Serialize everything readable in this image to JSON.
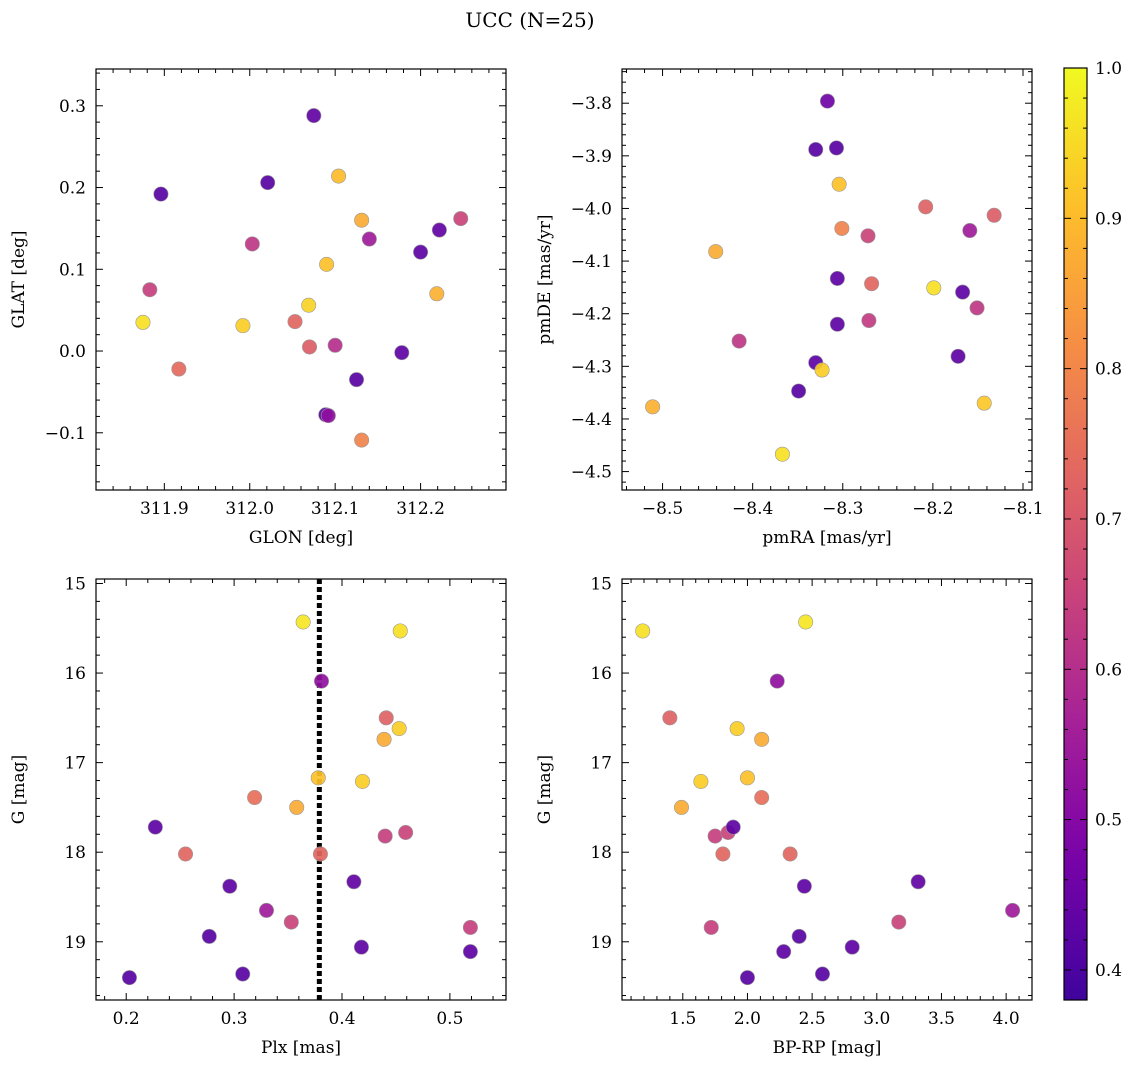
{
  "figure": {
    "title": "UCC (N=25)"
  },
  "colorbar": {
    "colormap": "plasma",
    "range": [
      0.38,
      1.0
    ],
    "ticks": [
      0.4,
      0.5,
      0.6,
      0.7,
      0.8,
      0.9,
      1.0
    ],
    "tick_labels": [
      "0.4",
      "0.5",
      "0.6",
      "0.7",
      "0.8",
      "0.9",
      "1.0"
    ]
  },
  "chart_data": [
    {
      "type": "scatter",
      "xlabel": "GLON [deg]",
      "ylabel": "GLAT [deg]",
      "xlim": [
        311.82,
        312.3
      ],
      "ylim": [
        -0.17,
        0.345
      ],
      "xticks": [
        311.9,
        312.0,
        312.1,
        312.2
      ],
      "xtick_labels": [
        "311.9",
        "312.0",
        "312.1",
        "312.2"
      ],
      "yticks": [
        -0.1,
        0.0,
        0.1,
        0.2,
        0.3
      ],
      "ytick_labels": [
        "−0.1",
        "0.0",
        "0.1",
        "0.2",
        "0.3"
      ],
      "points": [
        {
          "x": 311.875,
          "y": 0.035,
          "c": 0.96
        },
        {
          "x": 311.883,
          "y": 0.075,
          "c": 0.64
        },
        {
          "x": 311.896,
          "y": 0.192,
          "c": 0.42
        },
        {
          "x": 311.917,
          "y": -0.022,
          "c": 0.74
        },
        {
          "x": 311.992,
          "y": 0.031,
          "c": 0.93
        },
        {
          "x": 312.003,
          "y": 0.131,
          "c": 0.62
        },
        {
          "x": 312.021,
          "y": 0.206,
          "c": 0.42
        },
        {
          "x": 312.053,
          "y": 0.036,
          "c": 0.73
        },
        {
          "x": 312.069,
          "y": 0.056,
          "c": 0.94
        },
        {
          "x": 312.07,
          "y": 0.005,
          "c": 0.71
        },
        {
          "x": 312.075,
          "y": 0.288,
          "c": 0.44
        },
        {
          "x": 312.089,
          "y": -0.078,
          "c": 0.42
        },
        {
          "x": 312.092,
          "y": -0.079,
          "c": 0.52
        },
        {
          "x": 312.09,
          "y": 0.106,
          "c": 0.91
        },
        {
          "x": 312.1,
          "y": 0.007,
          "c": 0.6
        },
        {
          "x": 312.104,
          "y": 0.214,
          "c": 0.9
        },
        {
          "x": 312.125,
          "y": -0.035,
          "c": 0.42
        },
        {
          "x": 312.131,
          "y": 0.16,
          "c": 0.87
        },
        {
          "x": 312.131,
          "y": -0.109,
          "c": 0.79
        },
        {
          "x": 312.14,
          "y": 0.137,
          "c": 0.55
        },
        {
          "x": 312.178,
          "y": -0.002,
          "c": 0.43
        },
        {
          "x": 312.2,
          "y": 0.121,
          "c": 0.43
        },
        {
          "x": 312.219,
          "y": 0.07,
          "c": 0.88
        },
        {
          "x": 312.222,
          "y": 0.148,
          "c": 0.44
        },
        {
          "x": 312.247,
          "y": 0.162,
          "c": 0.65
        }
      ]
    },
    {
      "type": "scatter",
      "xlabel": "pmRA [mas/yr]",
      "ylabel": "pmDE [mas/yr]",
      "xlim": [
        -8.545,
        -8.09
      ],
      "ylim": [
        -4.535,
        -3.735
      ],
      "xticks": [
        -8.5,
        -8.4,
        -8.3,
        -8.2,
        -8.1
      ],
      "xtick_labels": [
        "−8.5",
        "−8.4",
        "−8.3",
        "−8.2",
        "−8.1"
      ],
      "yticks": [
        -4.5,
        -4.4,
        -4.3,
        -4.2,
        -4.1,
        -4.0,
        -3.9,
        -3.8
      ],
      "ytick_labels": [
        "−4.5",
        "−4.4",
        "−4.3",
        "−4.2",
        "−4.1",
        "−4.0",
        "−3.9",
        "−3.8"
      ],
      "points": [
        {
          "x": -8.511,
          "y": -4.377,
          "c": 0.88
        },
        {
          "x": -8.441,
          "y": -4.082,
          "c": 0.87
        },
        {
          "x": -8.415,
          "y": -4.252,
          "c": 0.62
        },
        {
          "x": -8.367,
          "y": -4.467,
          "c": 0.96
        },
        {
          "x": -8.349,
          "y": -4.347,
          "c": 0.42
        },
        {
          "x": -8.33,
          "y": -3.888,
          "c": 0.42
        },
        {
          "x": -8.33,
          "y": -4.293,
          "c": 0.43
        },
        {
          "x": -8.323,
          "y": -4.307,
          "c": 0.93
        },
        {
          "x": -8.317,
          "y": -3.796,
          "c": 0.46
        },
        {
          "x": -8.307,
          "y": -3.885,
          "c": 0.42
        },
        {
          "x": -8.306,
          "y": -4.133,
          "c": 0.43
        },
        {
          "x": -8.306,
          "y": -4.22,
          "c": 0.43
        },
        {
          "x": -8.304,
          "y": -3.954,
          "c": 0.91
        },
        {
          "x": -8.301,
          "y": -4.038,
          "c": 0.79
        },
        {
          "x": -8.272,
          "y": -4.052,
          "c": 0.65
        },
        {
          "x": -8.271,
          "y": -4.213,
          "c": 0.63
        },
        {
          "x": -8.268,
          "y": -4.143,
          "c": 0.73
        },
        {
          "x": -8.208,
          "y": -3.997,
          "c": 0.72
        },
        {
          "x": -8.199,
          "y": -4.151,
          "c": 0.96
        },
        {
          "x": -8.172,
          "y": -4.281,
          "c": 0.43
        },
        {
          "x": -8.167,
          "y": -4.159,
          "c": 0.43
        },
        {
          "x": -8.159,
          "y": -4.042,
          "c": 0.55
        },
        {
          "x": -8.151,
          "y": -4.189,
          "c": 0.62
        },
        {
          "x": -8.143,
          "y": -4.37,
          "c": 0.92
        },
        {
          "x": -8.132,
          "y": -4.013,
          "c": 0.71
        }
      ]
    },
    {
      "type": "scatter",
      "xlabel": "Plx [mas]",
      "ylabel": "G [mag]",
      "xlim": [
        0.172,
        0.552
      ],
      "ylim": [
        19.65,
        14.95
      ],
      "y_inverted": true,
      "xticks": [
        0.2,
        0.3,
        0.4,
        0.5
      ],
      "xtick_labels": [
        "0.2",
        "0.3",
        "0.4",
        "0.5"
      ],
      "yticks": [
        15,
        16,
        17,
        18,
        19
      ],
      "ytick_labels": [
        "15",
        "16",
        "17",
        "18",
        "19"
      ],
      "vline": 0.379,
      "points": [
        {
          "x": 0.203,
          "y": 19.4,
          "c": 0.42
        },
        {
          "x": 0.227,
          "y": 17.72,
          "c": 0.43
        },
        {
          "x": 0.255,
          "y": 18.02,
          "c": 0.73
        },
        {
          "x": 0.277,
          "y": 18.94,
          "c": 0.42
        },
        {
          "x": 0.296,
          "y": 18.38,
          "c": 0.43
        },
        {
          "x": 0.308,
          "y": 19.36,
          "c": 0.42
        },
        {
          "x": 0.319,
          "y": 17.39,
          "c": 0.75
        },
        {
          "x": 0.33,
          "y": 18.65,
          "c": 0.55
        },
        {
          "x": 0.353,
          "y": 18.78,
          "c": 0.65
        },
        {
          "x": 0.358,
          "y": 17.5,
          "c": 0.87
        },
        {
          "x": 0.364,
          "y": 15.43,
          "c": 0.97
        },
        {
          "x": 0.378,
          "y": 17.17,
          "c": 0.91
        },
        {
          "x": 0.38,
          "y": 18.02,
          "c": 0.73
        },
        {
          "x": 0.381,
          "y": 16.09,
          "c": 0.52
        },
        {
          "x": 0.411,
          "y": 18.33,
          "c": 0.44
        },
        {
          "x": 0.418,
          "y": 19.06,
          "c": 0.43
        },
        {
          "x": 0.419,
          "y": 17.21,
          "c": 0.93
        },
        {
          "x": 0.439,
          "y": 16.74,
          "c": 0.87
        },
        {
          "x": 0.44,
          "y": 17.82,
          "c": 0.64
        },
        {
          "x": 0.441,
          "y": 16.5,
          "c": 0.72
        },
        {
          "x": 0.453,
          "y": 16.62,
          "c": 0.93
        },
        {
          "x": 0.454,
          "y": 15.53,
          "c": 0.96
        },
        {
          "x": 0.459,
          "y": 17.78,
          "c": 0.65
        },
        {
          "x": 0.519,
          "y": 18.84,
          "c": 0.64
        },
        {
          "x": 0.519,
          "y": 19.11,
          "c": 0.43
        }
      ]
    },
    {
      "type": "scatter",
      "xlabel": "BP-RP [mag]",
      "ylabel": "G [mag]",
      "xlim": [
        1.03,
        4.2
      ],
      "ylim": [
        19.65,
        14.95
      ],
      "y_inverted": true,
      "xticks": [
        1.5,
        2.0,
        2.5,
        3.0,
        3.5,
        4.0
      ],
      "xtick_labels": [
        "1.5",
        "2.0",
        "2.5",
        "3.0",
        "3.5",
        "4.0"
      ],
      "yticks": [
        15,
        16,
        17,
        18,
        19
      ],
      "ytick_labels": [
        "15",
        "16",
        "17",
        "18",
        "19"
      ],
      "points": [
        {
          "x": 1.19,
          "y": 15.53,
          "c": 0.96
        },
        {
          "x": 1.4,
          "y": 16.5,
          "c": 0.72
        },
        {
          "x": 1.49,
          "y": 17.5,
          "c": 0.87
        },
        {
          "x": 1.64,
          "y": 17.21,
          "c": 0.93
        },
        {
          "x": 1.72,
          "y": 18.84,
          "c": 0.64
        },
        {
          "x": 1.75,
          "y": 17.82,
          "c": 0.64
        },
        {
          "x": 1.81,
          "y": 18.02,
          "c": 0.73
        },
        {
          "x": 1.85,
          "y": 17.78,
          "c": 0.65
        },
        {
          "x": 1.89,
          "y": 17.72,
          "c": 0.43
        },
        {
          "x": 1.92,
          "y": 16.62,
          "c": 0.93
        },
        {
          "x": 2.0,
          "y": 17.17,
          "c": 0.91
        },
        {
          "x": 2.0,
          "y": 19.4,
          "c": 0.42
        },
        {
          "x": 2.11,
          "y": 16.74,
          "c": 0.87
        },
        {
          "x": 2.11,
          "y": 17.39,
          "c": 0.75
        },
        {
          "x": 2.23,
          "y": 16.09,
          "c": 0.52
        },
        {
          "x": 2.28,
          "y": 19.11,
          "c": 0.43
        },
        {
          "x": 2.33,
          "y": 18.02,
          "c": 0.73
        },
        {
          "x": 2.4,
          "y": 18.94,
          "c": 0.42
        },
        {
          "x": 2.44,
          "y": 18.38,
          "c": 0.43
        },
        {
          "x": 2.45,
          "y": 15.43,
          "c": 0.97
        },
        {
          "x": 2.58,
          "y": 19.36,
          "c": 0.42
        },
        {
          "x": 2.81,
          "y": 19.06,
          "c": 0.43
        },
        {
          "x": 3.17,
          "y": 18.78,
          "c": 0.65
        },
        {
          "x": 3.32,
          "y": 18.33,
          "c": 0.44
        },
        {
          "x": 4.05,
          "y": 18.65,
          "c": 0.55
        }
      ]
    }
  ]
}
